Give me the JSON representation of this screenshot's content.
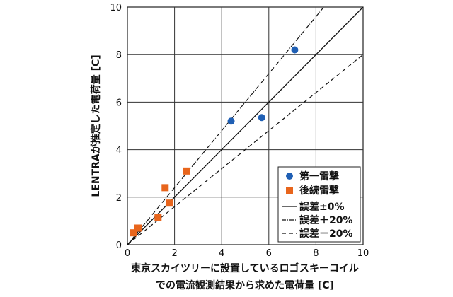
{
  "chart_data": {
    "type": "scatter",
    "xlabel_line1": "東京スカイツリーに設置しているロゴスキーコイル",
    "xlabel_line2": "での電流観測結果から求めた電荷量 [C]",
    "ylabel": "LENTRAが推定した電荷量 [C]",
    "xlim": [
      0,
      10
    ],
    "ylim": [
      0,
      10
    ],
    "xticks": [
      0,
      2,
      4,
      6,
      8,
      10
    ],
    "yticks": [
      0,
      2,
      4,
      6,
      8,
      10
    ],
    "grid": true,
    "legend_position": "bottom-right",
    "series": [
      {
        "name": "第一雷撃",
        "marker": "circle",
        "color": "#1f5fb4",
        "points": [
          [
            4.4,
            5.2
          ],
          [
            5.7,
            5.35
          ],
          [
            7.1,
            8.2
          ]
        ]
      },
      {
        "name": "後続雷撃",
        "marker": "square",
        "color": "#e8651c",
        "points": [
          [
            0.25,
            0.5
          ],
          [
            0.45,
            0.7
          ],
          [
            1.3,
            1.15
          ],
          [
            1.6,
            2.4
          ],
          [
            1.8,
            1.75
          ],
          [
            2.5,
            3.1
          ]
        ]
      }
    ],
    "reference_lines": [
      {
        "name": "誤差±0%",
        "slope": 1.0,
        "dash": "solid"
      },
      {
        "name": "誤差＋20%",
        "slope": 1.2,
        "dash": "dashdot"
      },
      {
        "name": "誤差－20%",
        "slope": 0.8,
        "dash": "dashed"
      }
    ]
  }
}
